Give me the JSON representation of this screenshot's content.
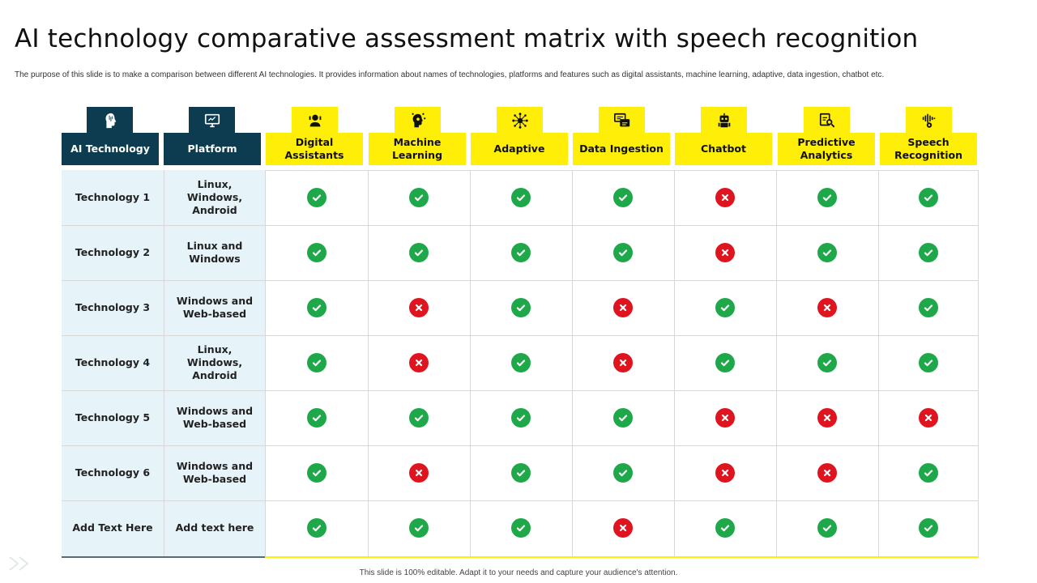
{
  "title": "AI technology comparative assessment matrix with speech recognition",
  "subtitle": "The purpose of this slide is to make a comparison between different AI technologies. It provides information about names of technologies, platforms and features such as digital assistants, machine learning, adaptive, data ingestion, chatbot etc.",
  "footer": "This slide is 100% editable. Adapt it to your needs and capture your audience's attention.",
  "colors": {
    "dark_header": "#0d3b4f",
    "feature_header": "#ffee08",
    "check": "#1fa84a",
    "cross": "#e0141e",
    "label_bg": "#e6f4f9"
  },
  "headers": {
    "technology": {
      "label": "AI Technology",
      "icon": "ai-head-icon"
    },
    "platform": {
      "label": "Platform",
      "icon": "monitor-icon"
    }
  },
  "features": [
    {
      "label": "Digital Assistants",
      "icon": "assistant-icon"
    },
    {
      "label": "Machine Learning",
      "icon": "machine-learning-icon"
    },
    {
      "label": "Adaptive",
      "icon": "network-icon"
    },
    {
      "label": "Data Ingestion",
      "icon": "data-ingestion-icon"
    },
    {
      "label": "Chatbot",
      "icon": "robot-icon"
    },
    {
      "label": "Predictive Analytics",
      "icon": "analytics-icon"
    },
    {
      "label": "Speech Recognition",
      "icon": "speech-recognition-icon"
    }
  ],
  "rows": [
    {
      "technology": "Technology 1",
      "platform": "Linux, Windows, Android",
      "values": [
        true,
        true,
        true,
        true,
        false,
        true,
        true
      ]
    },
    {
      "technology": "Technology 2",
      "platform": "Linux and Windows",
      "values": [
        true,
        true,
        true,
        true,
        false,
        true,
        true
      ]
    },
    {
      "technology": "Technology 3",
      "platform": "Windows and Web-based",
      "values": [
        true,
        false,
        true,
        false,
        true,
        false,
        true
      ]
    },
    {
      "technology": "Technology 4",
      "platform": "Linux, Windows, Android",
      "values": [
        true,
        false,
        true,
        false,
        true,
        true,
        true
      ]
    },
    {
      "technology": "Technology 5",
      "platform": "Windows and Web-based",
      "values": [
        true,
        true,
        true,
        true,
        false,
        false,
        false
      ]
    },
    {
      "technology": "Technology 6",
      "platform": "Windows and Web-based",
      "values": [
        true,
        false,
        true,
        true,
        false,
        false,
        true
      ]
    },
    {
      "technology": "Add Text Here",
      "platform": "Add text here",
      "values": [
        true,
        true,
        true,
        false,
        true,
        true,
        true
      ]
    }
  ]
}
